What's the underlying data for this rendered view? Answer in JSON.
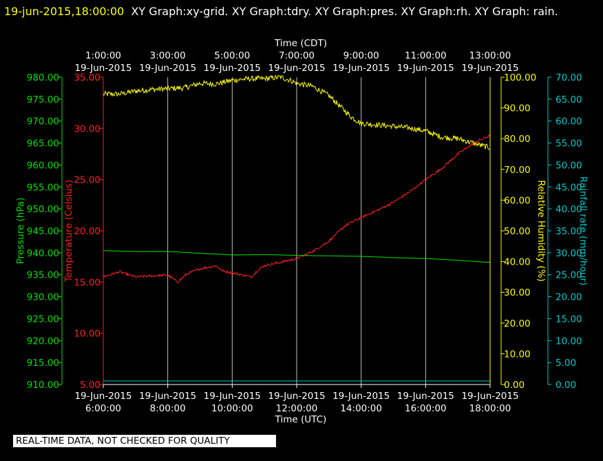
{
  "header": {
    "timestamp": "19-jun-2015,18:00:00",
    "graphs_text": "XY Graph:xy-grid.  XY Graph:tdry.  XY Graph:pres.  XY Graph:rh.  XY Graph: rain."
  },
  "quality_notice": "REAL-TIME DATA, NOT CHECKED FOR QUALITY",
  "colors": {
    "pressure": "#00e000",
    "temperature": "#ff2020",
    "humidity": "#ffff00",
    "rain": "#00cccc",
    "grid": "#c0c0c0",
    "axis_text": "#ffffff"
  },
  "chart_data": {
    "type": "line",
    "top_axis": {
      "title": "Time (CDT)",
      "ticks": [
        {
          "time": "1:00:00",
          "date": "19-Jun-2015"
        },
        {
          "time": "3:00:00",
          "date": "19-Jun-2015"
        },
        {
          "time": "5:00:00",
          "date": "19-Jun-2015"
        },
        {
          "time": "7:00:00",
          "date": "19-Jun-2015"
        },
        {
          "time": "9:00:00",
          "date": "19-Jun-2015"
        },
        {
          "time": "11:00:00",
          "date": "19-Jun-2015"
        },
        {
          "time": "13:00:00",
          "date": "19-Jun-2015"
        }
      ]
    },
    "bottom_axis": {
      "title": "Time (UTC)",
      "range": [
        "2015-06-19 06:00",
        "2015-06-19 18:00"
      ],
      "ticks": [
        {
          "date": "19-Jun-2015",
          "time": "6:00:00"
        },
        {
          "date": "19-Jun-2015",
          "time": "8:00:00"
        },
        {
          "date": "19-Jun-2015",
          "time": "10:00:00"
        },
        {
          "date": "19-Jun-2015",
          "time": "12:00:00"
        },
        {
          "date": "19-Jun-2015",
          "time": "14:00:00"
        },
        {
          "date": "19-Jun-2015",
          "time": "16:00:00"
        },
        {
          "date": "19-Jun-2015",
          "time": "18:00:00"
        }
      ]
    },
    "grid": true,
    "y_axes": {
      "pressure": {
        "label": "Pressure (hPa)",
        "range": [
          910,
          980
        ],
        "ticks": [
          "910.00",
          "915.00",
          "920.00",
          "925.00",
          "930.00",
          "935.00",
          "940.00",
          "945.00",
          "950.00",
          "955.00",
          "960.00",
          "965.00",
          "970.00",
          "975.00",
          "980.00"
        ]
      },
      "temperature": {
        "label": "Temperature (Celsius)",
        "range": [
          5,
          35
        ],
        "ticks": [
          "5.00",
          "10.00",
          "15.00",
          "20.00",
          "25.00",
          "30.00",
          "35.00"
        ]
      },
      "humidity": {
        "label": "Relative Humidity (%)",
        "range": [
          0,
          100
        ],
        "ticks": [
          "0.00",
          "10.00",
          "20.00",
          "30.00",
          "40.00",
          "50.00",
          "60.00",
          "70.00",
          "80.00",
          "90.00",
          "100.00"
        ]
      },
      "rain": {
        "label": "Rainfall rate (mm/hour)",
        "range": [
          0,
          70
        ],
        "ticks": [
          "0.00",
          "5.00",
          "10.00",
          "15.00",
          "20.00",
          "25.00",
          "30.00",
          "35.00",
          "40.00",
          "45.00",
          "50.00",
          "55.00",
          "60.00",
          "65.00",
          "70.00"
        ]
      }
    },
    "x_unit": "hours UTC, 19-Jun-2015",
    "series": [
      {
        "key": "humidity",
        "noise": 0.9,
        "points": [
          [
            6.0,
            94.5
          ],
          [
            6.5,
            94.5
          ],
          [
            7.0,
            95.5
          ],
          [
            7.5,
            96.0
          ],
          [
            8.0,
            96.3
          ],
          [
            8.5,
            96.5
          ],
          [
            9.0,
            98.0
          ],
          [
            9.5,
            97.8
          ],
          [
            10.0,
            99.0
          ],
          [
            10.5,
            99.5
          ],
          [
            11.0,
            99.5
          ],
          [
            11.5,
            100.0
          ],
          [
            11.8,
            99.0
          ],
          [
            12.0,
            98.0
          ],
          [
            12.5,
            97.0
          ],
          [
            13.0,
            94.0
          ],
          [
            13.5,
            89.0
          ],
          [
            13.7,
            87.0
          ],
          [
            14.0,
            85.0
          ],
          [
            14.5,
            84.5
          ],
          [
            15.0,
            84.0
          ],
          [
            15.5,
            83.5
          ],
          [
            16.0,
            82.5
          ],
          [
            16.5,
            80.5
          ],
          [
            17.0,
            80.0
          ],
          [
            17.5,
            78.5
          ],
          [
            18.0,
            77.0
          ]
        ]
      },
      {
        "key": "temperature",
        "noise": 0.12,
        "points": [
          [
            6.0,
            15.5
          ],
          [
            6.5,
            16.0
          ],
          [
            7.0,
            15.5
          ],
          [
            7.5,
            15.6
          ],
          [
            8.0,
            15.7
          ],
          [
            8.3,
            15.0
          ],
          [
            8.6,
            15.8
          ],
          [
            9.0,
            16.3
          ],
          [
            9.5,
            16.6
          ],
          [
            9.7,
            16.1
          ],
          [
            10.0,
            15.9
          ],
          [
            10.3,
            15.7
          ],
          [
            10.6,
            15.5
          ],
          [
            10.8,
            16.2
          ],
          [
            11.0,
            16.6
          ],
          [
            11.3,
            16.8
          ],
          [
            11.6,
            17.0
          ],
          [
            12.0,
            17.3
          ],
          [
            12.5,
            18.0
          ],
          [
            13.0,
            19.0
          ],
          [
            13.5,
            20.5
          ],
          [
            14.0,
            21.3
          ],
          [
            14.5,
            22.0
          ],
          [
            15.0,
            22.8
          ],
          [
            15.5,
            23.8
          ],
          [
            16.0,
            25.0
          ],
          [
            16.5,
            26.1
          ],
          [
            17.0,
            27.5
          ],
          [
            17.5,
            28.6
          ],
          [
            18.0,
            29.3
          ]
        ]
      },
      {
        "key": "pressure",
        "noise": 0.04,
        "points": [
          [
            6.0,
            940.5
          ],
          [
            7.0,
            940.3
          ],
          [
            8.0,
            940.3
          ],
          [
            9.0,
            939.9
          ],
          [
            10.0,
            939.5
          ],
          [
            11.0,
            939.6
          ],
          [
            12.0,
            939.4
          ],
          [
            13.0,
            939.3
          ],
          [
            14.0,
            939.2
          ],
          [
            15.0,
            938.9
          ],
          [
            16.0,
            938.7
          ],
          [
            17.0,
            938.3
          ],
          [
            18.0,
            937.8
          ]
        ]
      },
      {
        "key": "rain",
        "noise": 0,
        "points": [
          [
            6.0,
            0.8
          ],
          [
            18.0,
            0.8
          ]
        ]
      }
    ]
  }
}
